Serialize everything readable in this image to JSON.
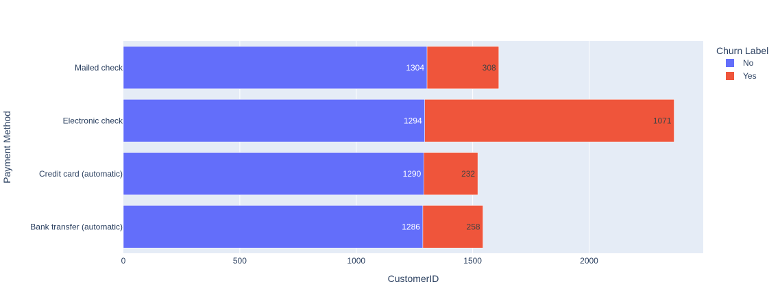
{
  "chart_data": {
    "type": "bar",
    "orientation": "horizontal",
    "barmode": "stack",
    "categories": [
      "Bank transfer (automatic)",
      "Credit card (automatic)",
      "Electronic check",
      "Mailed check"
    ],
    "series": [
      {
        "name": "No",
        "values": [
          1286,
          1290,
          1294,
          1304
        ],
        "color": "#636efa",
        "label_color": "#ffffff"
      },
      {
        "name": "Yes",
        "values": [
          258,
          232,
          1071,
          308
        ],
        "color": "#ef553b",
        "label_color": "#444444"
      }
    ],
    "xlabel": "CustomerID",
    "ylabel": "Payment Method",
    "xlim": [
      0,
      2490
    ],
    "xticks": [
      0,
      500,
      1000,
      1500,
      2000
    ],
    "grid": true,
    "legend": {
      "title": "Churn Label",
      "position": "top-right"
    },
    "colors": {
      "plot_bg": "#e5ecf6",
      "grid": "#ffffff",
      "text": "#2a3f5f"
    }
  }
}
